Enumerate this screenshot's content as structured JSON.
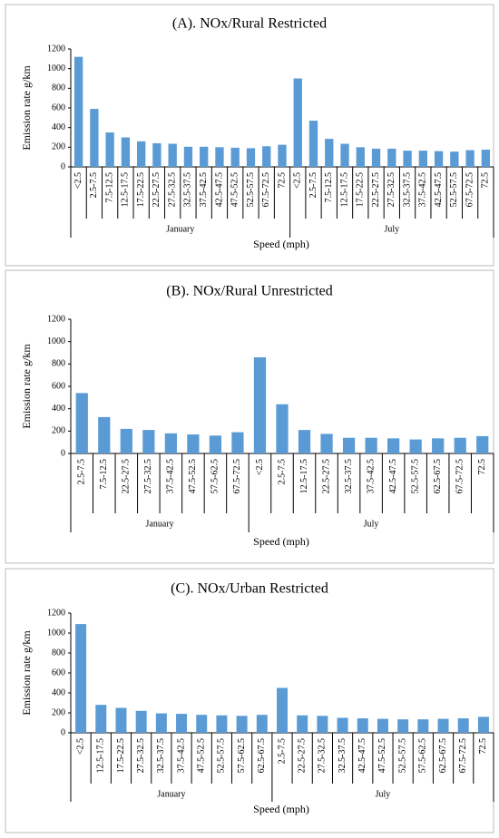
{
  "chart_data": [
    {
      "type": "bar",
      "title": "(A). NOx/Rural  Restricted",
      "y_label": "Emission rate g/km",
      "x_label": "Speed (mph)",
      "color": "#5b9bd5",
      "ylim": [
        0,
        1200
      ],
      "yticks": [
        0,
        200,
        400,
        600,
        800,
        1000,
        1200
      ],
      "groups": [
        {
          "name": "January",
          "categories": [
            "<2.5",
            "2.5-7.5",
            "7.5-12.5",
            "12.5-17.5",
            "17.5-22.5",
            "22.5-27.5",
            "27.5-32.5",
            "32.5-37.5",
            "37.5-42.5",
            "42.5-47.5",
            "47.5-52.5",
            "52.5-57.5",
            "67.5-72.5",
            "72.5"
          ],
          "values": [
            1120,
            590,
            350,
            300,
            260,
            240,
            235,
            205,
            205,
            200,
            195,
            190,
            210,
            225
          ]
        },
        {
          "name": "July",
          "categories": [
            "<2.5",
            "2.5-7.5",
            "7.5-12.5",
            "12.5-17.5",
            "17.5-22.5",
            "22.5-27.5",
            "27.5-32.5",
            "32.5-37.5",
            "37.5-42.5",
            "42.5-47.5",
            "52.5-57.5",
            "67.5-72.5",
            "72.5"
          ],
          "values": [
            900,
            470,
            285,
            235,
            200,
            185,
            185,
            165,
            165,
            160,
            155,
            170,
            175
          ]
        }
      ]
    },
    {
      "type": "bar",
      "title": "(B). NOx/Rural  Unrestricted",
      "y_label": "Emission rate g/km",
      "x_label": "Speed (mph)",
      "color": "#5b9bd5",
      "ylim": [
        0,
        1200
      ],
      "yticks": [
        0,
        200,
        400,
        600,
        800,
        1000,
        1200
      ],
      "groups": [
        {
          "name": "January",
          "categories": [
            "2.5-7.5",
            "7.5-12.5",
            "22.5-27.5",
            "27.5-32.5",
            "37.5-42.5",
            "47.5-52.5",
            "57.5-62.5",
            "67.5-72.5"
          ],
          "values": [
            540,
            325,
            220,
            210,
            180,
            170,
            160,
            190
          ]
        },
        {
          "name": "July",
          "categories": [
            "<2.5",
            "2.5-7.5",
            "12.5-17.5",
            "22.5-27.5",
            "32.5-37.5",
            "37.5-42.5",
            "42.5-47.5",
            "52.5-57.5",
            "62.5-67.5",
            "67.5-72.5",
            "72.5"
          ],
          "values": [
            860,
            440,
            210,
            175,
            140,
            140,
            135,
            125,
            135,
            140,
            155
          ]
        }
      ]
    },
    {
      "type": "bar",
      "title": "(C). NOx/Urban Restricted",
      "y_label": "Emission rate g/km",
      "x_label": "Speed (mph)",
      "color": "#5b9bd5",
      "ylim": [
        0,
        1200
      ],
      "yticks": [
        0,
        200,
        400,
        600,
        800,
        1000,
        1200
      ],
      "groups": [
        {
          "name": "January",
          "categories": [
            "<2.5",
            "12.5-17.5",
            "17.5-22.5",
            "27.5-32.5",
            "32.5-37.5",
            "37.5-42.5",
            "47.5-52.5",
            "52.5-57.5",
            "57.5-62.5",
            "62.5-67.5"
          ],
          "values": [
            1090,
            280,
            250,
            220,
            195,
            190,
            180,
            175,
            170,
            180
          ]
        },
        {
          "name": "July",
          "categories": [
            "2.5-7.5",
            "22.5-27.5",
            "27.5-32.5",
            "32.5-37.5",
            "42.5-47.5",
            "47.5-52.5",
            "52.5-57.5",
            "57.5-62.5",
            "62.5-67.5",
            "67.5-72.5",
            "72.5"
          ],
          "values": [
            450,
            175,
            170,
            150,
            145,
            140,
            135,
            135,
            140,
            145,
            160
          ]
        }
      ]
    }
  ]
}
